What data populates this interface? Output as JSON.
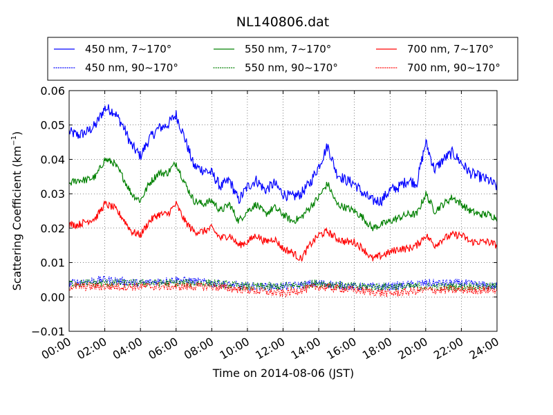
{
  "chart_data": {
    "type": "line",
    "title": "NL140806.dat",
    "xlabel": "Time on 2014-08-06 (JST)",
    "ylabel": "Scattering Coefficient (km",
    "ylabel_sup": "−1",
    "ylabel_close": ")",
    "xlim": [
      "00:00",
      "24:00"
    ],
    "ylim": [
      -0.01,
      0.06
    ],
    "x_ticks": [
      "00:00",
      "02:00",
      "04:00",
      "06:00",
      "08:00",
      "10:00",
      "12:00",
      "14:00",
      "16:00",
      "18:00",
      "20:00",
      "22:00",
      "24:00"
    ],
    "y_ticks": [
      "−0.01",
      "0.00",
      "0.01",
      "0.02",
      "0.03",
      "0.04",
      "0.05",
      "0.06"
    ],
    "grid": true,
    "legend_position": "top",
    "series": [
      {
        "name": "450 nm, 7∼170°",
        "color": "#0000ff",
        "style": "solid",
        "x": [
          "00:00",
          "00:30",
          "01:00",
          "01:30",
          "02:00",
          "02:30",
          "03:00",
          "03:30",
          "04:00",
          "04:30",
          "05:00",
          "05:30",
          "06:00",
          "06:30",
          "07:00",
          "07:30",
          "08:00",
          "08:30",
          "09:00",
          "09:30",
          "10:00",
          "10:30",
          "11:00",
          "11:30",
          "12:00",
          "12:30",
          "13:00",
          "13:30",
          "14:00",
          "14:30",
          "15:00",
          "15:30",
          "16:00",
          "16:30",
          "17:00",
          "17:30",
          "18:00",
          "18:30",
          "19:00",
          "19:30",
          "20:00",
          "20:30",
          "21:00",
          "21:30",
          "22:00",
          "22:30",
          "23:00",
          "23:30",
          "24:00"
        ],
        "values": [
          0.048,
          0.047,
          0.048,
          0.05,
          0.055,
          0.054,
          0.05,
          0.044,
          0.041,
          0.046,
          0.049,
          0.05,
          0.053,
          0.046,
          0.038,
          0.037,
          0.036,
          0.032,
          0.034,
          0.028,
          0.032,
          0.034,
          0.031,
          0.033,
          0.03,
          0.029,
          0.03,
          0.033,
          0.038,
          0.044,
          0.036,
          0.034,
          0.033,
          0.03,
          0.028,
          0.028,
          0.031,
          0.032,
          0.034,
          0.033,
          0.045,
          0.037,
          0.04,
          0.042,
          0.039,
          0.036,
          0.035,
          0.034,
          0.032
        ]
      },
      {
        "name": "550 nm, 7∼170°",
        "color": "#008000",
        "style": "solid",
        "x": [
          "00:00",
          "00:30",
          "01:00",
          "01:30",
          "02:00",
          "02:30",
          "03:00",
          "03:30",
          "04:00",
          "04:30",
          "05:00",
          "05:30",
          "06:00",
          "06:30",
          "07:00",
          "07:30",
          "08:00",
          "08:30",
          "09:00",
          "09:30",
          "10:00",
          "10:30",
          "11:00",
          "11:30",
          "12:00",
          "12:30",
          "13:00",
          "13:30",
          "14:00",
          "14:30",
          "15:00",
          "15:30",
          "16:00",
          "16:30",
          "17:00",
          "17:30",
          "18:00",
          "18:30",
          "19:00",
          "19:30",
          "20:00",
          "20:30",
          "21:00",
          "21:30",
          "22:00",
          "22:30",
          "23:00",
          "23:30",
          "24:00"
        ],
        "values": [
          0.033,
          0.034,
          0.034,
          0.035,
          0.04,
          0.039,
          0.035,
          0.03,
          0.028,
          0.033,
          0.036,
          0.036,
          0.039,
          0.033,
          0.028,
          0.027,
          0.028,
          0.025,
          0.027,
          0.022,
          0.025,
          0.027,
          0.024,
          0.026,
          0.024,
          0.022,
          0.023,
          0.026,
          0.029,
          0.033,
          0.027,
          0.026,
          0.025,
          0.023,
          0.02,
          0.021,
          0.022,
          0.023,
          0.024,
          0.024,
          0.03,
          0.025,
          0.027,
          0.029,
          0.027,
          0.025,
          0.024,
          0.024,
          0.023
        ]
      },
      {
        "name": "700 nm, 7∼170°",
        "color": "#ff0000",
        "style": "solid",
        "x": [
          "00:00",
          "00:30",
          "01:00",
          "01:30",
          "02:00",
          "02:30",
          "03:00",
          "03:30",
          "04:00",
          "04:30",
          "05:00",
          "05:30",
          "06:00",
          "06:30",
          "07:00",
          "07:30",
          "08:00",
          "08:30",
          "09:00",
          "09:30",
          "10:00",
          "10:30",
          "11:00",
          "11:30",
          "12:00",
          "12:30",
          "13:00",
          "13:30",
          "14:00",
          "14:30",
          "15:00",
          "15:30",
          "16:00",
          "16:30",
          "17:00",
          "17:30",
          "18:00",
          "18:30",
          "19:00",
          "19:30",
          "20:00",
          "20:30",
          "21:00",
          "21:30",
          "22:00",
          "22:30",
          "23:00",
          "23:30",
          "24:00"
        ],
        "values": [
          0.021,
          0.021,
          0.022,
          0.023,
          0.027,
          0.026,
          0.023,
          0.019,
          0.018,
          0.022,
          0.024,
          0.024,
          0.027,
          0.022,
          0.019,
          0.019,
          0.02,
          0.017,
          0.018,
          0.015,
          0.016,
          0.018,
          0.016,
          0.017,
          0.014,
          0.013,
          0.011,
          0.015,
          0.018,
          0.019,
          0.017,
          0.016,
          0.016,
          0.014,
          0.011,
          0.012,
          0.013,
          0.014,
          0.014,
          0.015,
          0.018,
          0.015,
          0.017,
          0.018,
          0.018,
          0.016,
          0.016,
          0.016,
          0.015
        ]
      },
      {
        "name": "450 nm, 90∼170°",
        "color": "#0000ff",
        "style": "dotted",
        "x": [
          "00:00",
          "02:00",
          "04:00",
          "06:00",
          "08:00",
          "10:00",
          "12:00",
          "14:00",
          "16:00",
          "18:00",
          "20:00",
          "22:00",
          "24:00"
        ],
        "values": [
          0.004,
          0.005,
          0.004,
          0.005,
          0.004,
          0.003,
          0.003,
          0.004,
          0.003,
          0.003,
          0.004,
          0.004,
          0.003
        ]
      },
      {
        "name": "550 nm, 90∼170°",
        "color": "#008000",
        "style": "dotted",
        "x": [
          "00:00",
          "02:00",
          "04:00",
          "06:00",
          "08:00",
          "10:00",
          "12:00",
          "14:00",
          "16:00",
          "18:00",
          "20:00",
          "22:00",
          "24:00"
        ],
        "values": [
          0.004,
          0.004,
          0.004,
          0.004,
          0.004,
          0.003,
          0.003,
          0.004,
          0.003,
          0.003,
          0.003,
          0.003,
          0.003
        ]
      },
      {
        "name": "700 nm, 90∼170°",
        "color": "#ff0000",
        "style": "dotted",
        "x": [
          "00:00",
          "02:00",
          "04:00",
          "06:00",
          "08:00",
          "10:00",
          "12:00",
          "14:00",
          "16:00",
          "18:00",
          "20:00",
          "22:00",
          "24:00"
        ],
        "values": [
          0.003,
          0.003,
          0.003,
          0.003,
          0.003,
          0.002,
          0.001,
          0.003,
          0.002,
          0.001,
          0.002,
          0.002,
          0.002
        ]
      }
    ]
  }
}
